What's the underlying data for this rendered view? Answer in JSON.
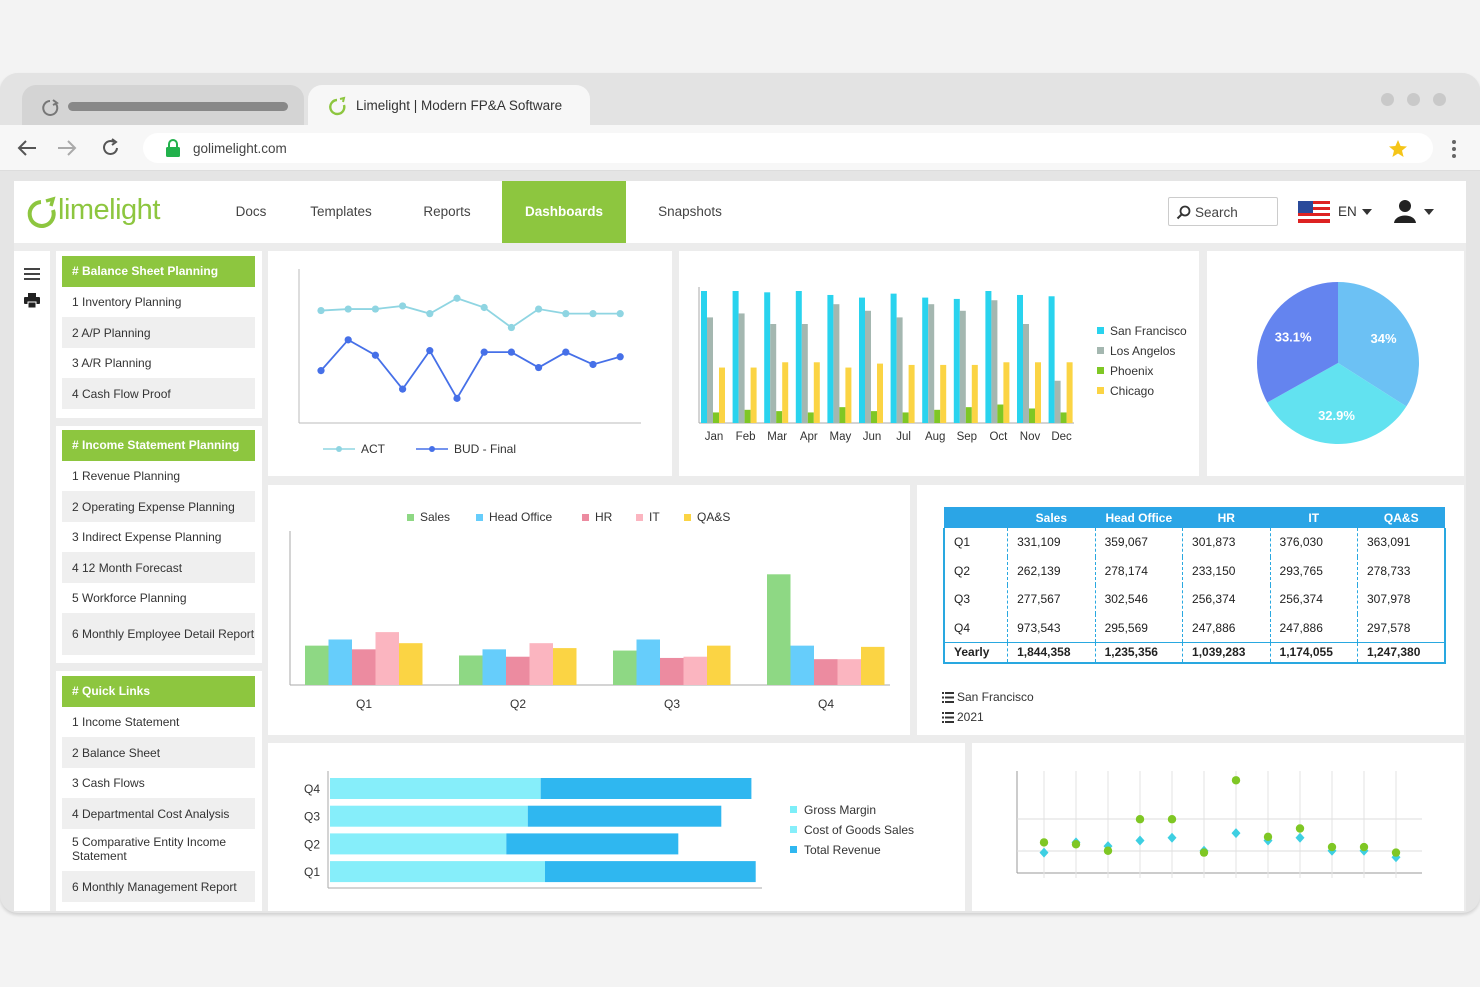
{
  "browser": {
    "tab_title": "Limelight | Modern FP&A Software",
    "url": "golimelight.com",
    "icons": [
      "reload-icon",
      "back-arrow-icon",
      "forward-arrow-icon",
      "lock-icon",
      "star-icon",
      "kebab-menu-icon"
    ]
  },
  "header": {
    "logo_text": "limelight",
    "nav": [
      "Docs",
      "Templates",
      "Reports",
      "Dashboards",
      "Snapshots"
    ],
    "active_nav": "Dashboards",
    "search_placeholder": "Search",
    "language": "EN",
    "accent_color": "#8dc63f"
  },
  "sidebar": {
    "sections": [
      {
        "title": "# Balance Sheet Planning",
        "items": [
          "1  Inventory Planning",
          "2  A/P Planning",
          "3  A/R Planning",
          "4  Cash Flow Proof"
        ]
      },
      {
        "title": "# Income Statement Planning",
        "items": [
          "1  Revenue Planning",
          "2  Operating Expense Planning",
          "3  Indirect Expense Planning",
          "4  12 Month Forecast",
          "5  Workforce Planning",
          "6  Monthly Employee Detail Report"
        ]
      },
      {
        "title": "# Quick Links",
        "items": [
          "1  Income Statement",
          "2  Balance Sheet",
          "3  Cash Flows",
          "4  Departmental Cost Analysis",
          "5  Comparative Entity Income Statement",
          "6  Monthly Management Report"
        ]
      }
    ]
  },
  "chart_data": [
    {
      "type": "line",
      "x": [
        1,
        2,
        3,
        4,
        5,
        6,
        7,
        8,
        9,
        10,
        11,
        12
      ],
      "series": [
        {
          "name": "ACT",
          "values": [
            73,
            74,
            74,
            76,
            71,
            81,
            75,
            62,
            74,
            71,
            71,
            71
          ],
          "color": "#8fd5e2"
        },
        {
          "name": "BUD - Final",
          "values": [
            34,
            54,
            44,
            22,
            47,
            16,
            46,
            46,
            36,
            46,
            38,
            43
          ],
          "color": "#4670e8"
        }
      ],
      "ylim": [
        0,
        100
      ]
    },
    {
      "type": "bar",
      "categories": [
        "Jan",
        "Feb",
        "Mar",
        "Apr",
        "May",
        "Jun",
        "Jul",
        "Aug",
        "Sep",
        "Oct",
        "Nov",
        "Dec"
      ],
      "series": [
        {
          "name": "San Francisco",
          "values": [
            100,
            100,
            99,
            100,
            97,
            95,
            98,
            95,
            94,
            100,
            97,
            96
          ],
          "color": "#29d3ee"
        },
        {
          "name": "Los Angelos",
          "values": [
            80,
            83,
            75,
            75,
            90,
            85,
            80,
            90,
            85,
            93,
            75,
            32
          ],
          "color": "#a4b7b0"
        },
        {
          "name": "Phoenix",
          "values": [
            8,
            10,
            9,
            8,
            12,
            9,
            8,
            10,
            12,
            14,
            11,
            8
          ],
          "color": "#7fc724"
        },
        {
          "name": "Chicago",
          "values": [
            42,
            42,
            46,
            46,
            42,
            45,
            44,
            44,
            44,
            46,
            46,
            46
          ],
          "color": "#fbd444"
        }
      ],
      "ylim": [
        0,
        100
      ]
    },
    {
      "type": "pie",
      "slices": [
        {
          "label": "34%",
          "value": 34,
          "color": "#6cc1f4"
        },
        {
          "label": "32.9%",
          "value": 32.9,
          "color": "#62e2f0"
        },
        {
          "label": "33.1%",
          "value": 33.1,
          "color": "#6484ef"
        }
      ]
    },
    {
      "type": "bar",
      "categories": [
        "Q1",
        "Q2",
        "Q3",
        "Q4"
      ],
      "series": [
        {
          "name": "Sales",
          "values": [
            32,
            24,
            28,
            90
          ],
          "color": "#8ed884"
        },
        {
          "name": "Head Office",
          "values": [
            37,
            29,
            37,
            32
          ],
          "color": "#66cdfb"
        },
        {
          "name": "HR",
          "values": [
            29,
            23,
            22,
            21
          ],
          "color": "#ec8ba0"
        },
        {
          "name": "IT",
          "values": [
            43,
            34,
            23,
            21
          ],
          "color": "#fbb5c0"
        },
        {
          "name": "QA&S",
          "values": [
            34,
            30,
            32,
            31
          ],
          "color": "#fbd444"
        }
      ],
      "ylim": [
        0,
        100
      ]
    },
    {
      "type": "table",
      "columns": [
        "",
        "Sales",
        "Head Office",
        "HR",
        "IT",
        "QA&S"
      ],
      "rows": [
        [
          "Q1",
          "331,109",
          "359,067",
          "301,873",
          "376,030",
          "363,091"
        ],
        [
          "Q2",
          "262,139",
          "278,174",
          "233,150",
          "293,765",
          "278,733"
        ],
        [
          "Q3",
          "277,567",
          "302,546",
          "256,374",
          "256,374",
          "307,978"
        ],
        [
          "Q4",
          "973,543",
          "295,569",
          "247,886",
          "247,886",
          "297,578"
        ]
      ],
      "total_row": [
        "Yearly",
        "1,844,358",
        "1,235,356",
        "1,039,283",
        "1,174,055",
        "1,247,380"
      ],
      "filters": [
        "San Francisco",
        "2021"
      ],
      "header_color": "#2ba5e6"
    },
    {
      "type": "bar",
      "orientation": "horizontal",
      "stacked": true,
      "categories": [
        "Q4",
        "Q3",
        "Q2",
        "Q1"
      ],
      "series": [
        {
          "name": "Gross Margin",
          "values": [
            0,
            0,
            0,
            0
          ],
          "color": "#7ceef8"
        },
        {
          "name": "Cost of Goods Sales",
          "values": [
            49,
            46,
            41,
            50
          ],
          "color": "#86eefa"
        },
        {
          "name": "Total Revenue",
          "values": [
            49,
            45,
            40,
            49
          ],
          "color": "#2fb7f0"
        }
      ],
      "xlim": [
        0,
        100
      ]
    },
    {
      "type": "scatter",
      "x": [
        1,
        2,
        3,
        4,
        5,
        6,
        7,
        8,
        9,
        10,
        11,
        12
      ],
      "series": [
        {
          "values": [
            33,
            31,
            24,
            58,
            58,
            22,
            100,
            39,
            48,
            28,
            28,
            22
          ],
          "color": "#7fc724"
        },
        {
          "values": [
            22,
            33,
            29,
            35,
            38,
            24,
            43,
            35,
            38,
            24,
            24,
            17
          ],
          "color": "#3ecfe2"
        }
      ],
      "ylim": [
        0,
        110
      ]
    }
  ]
}
